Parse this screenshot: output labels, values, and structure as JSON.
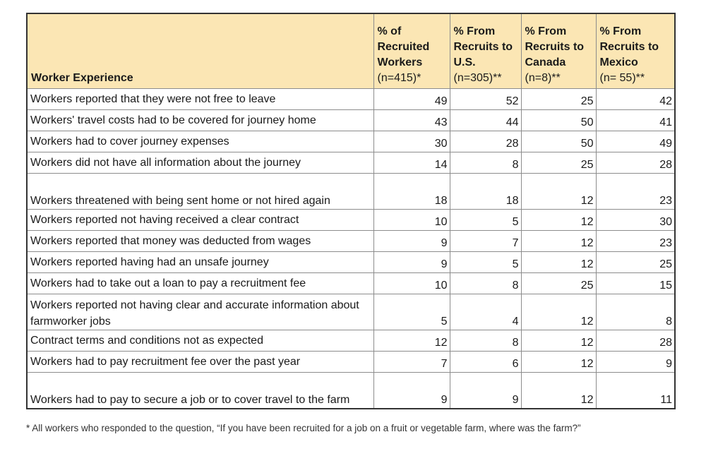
{
  "table": {
    "headers": [
      {
        "title": "Worker Experience",
        "sub": ""
      },
      {
        "title": "% of Recruited Workers",
        "sub": "(n=415)*"
      },
      {
        "title": "% From Recruits to U.S.",
        "sub": "(n=305)**"
      },
      {
        "title": "% From Recruits to Canada",
        "sub": "(n=8)**"
      },
      {
        "title": "% From Recruits to Mexico",
        "sub": "(n= 55)**"
      }
    ],
    "rows": [
      {
        "label": "Workers reported that they were not free to leave",
        "values": [
          "49",
          "52",
          "25",
          "42"
        ]
      },
      {
        "label": "Workers' travel costs had to be covered for journey home",
        "values": [
          "43",
          "44",
          "50",
          "41"
        ]
      },
      {
        "label": "Workers had to cover journey expenses",
        "values": [
          "30",
          "28",
          "50",
          "49"
        ]
      },
      {
        "label": "Workers did not have all information about the journey",
        "values": [
          "14",
          "8",
          "25",
          "28"
        ]
      },
      {
        "label": "Workers threatened with being sent home or not hired again",
        "values": [
          "18",
          "18",
          "12",
          "23"
        ]
      },
      {
        "label": "Workers reported not having received a clear contract",
        "values": [
          "10",
          "5",
          "12",
          "30"
        ]
      },
      {
        "label": "Workers reported that money was deducted from wages",
        "values": [
          "9",
          "7",
          "12",
          "23"
        ]
      },
      {
        "label": "Workers reported having had an unsafe journey",
        "values": [
          "9",
          "5",
          "12",
          "25"
        ]
      },
      {
        "label": "Workers had to take out a loan to pay a recruitment fee",
        "values": [
          "10",
          "8",
          "25",
          "15"
        ]
      },
      {
        "label": "Workers reported not having clear and accurate information about farmworker jobs",
        "values": [
          "5",
          "4",
          "12",
          "8"
        ]
      },
      {
        "label": "Contract terms and conditions not as expected",
        "values": [
          "12",
          "8",
          "12",
          "28"
        ]
      },
      {
        "label": "Workers had to pay recruitment fee over the past year",
        "values": [
          "7",
          "6",
          "12",
          "9"
        ]
      },
      {
        "label": "Workers had to pay to secure a job or to cover travel to the farm",
        "values": [
          "9",
          "9",
          "12",
          "11"
        ]
      }
    ]
  },
  "footnote": "* All workers who responded to the question, “If you have been recruited for a job on a fruit or vegetable farm, where was the farm?”"
}
